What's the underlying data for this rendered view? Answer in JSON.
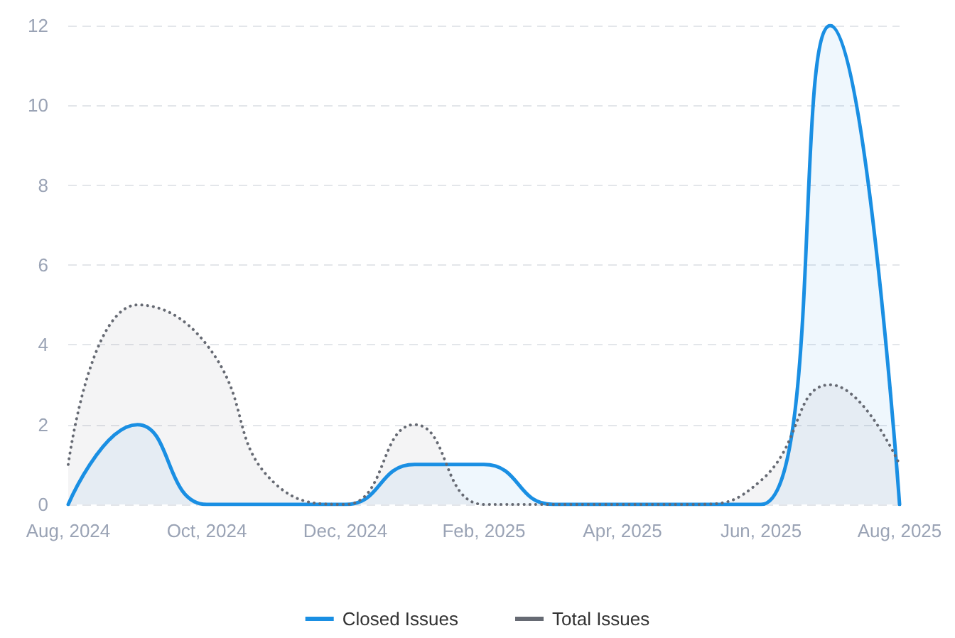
{
  "chart_data": {
    "type": "area",
    "categories": [
      "Aug, 2024",
      null,
      "Oct, 2024",
      null,
      "Dec, 2024",
      null,
      "Feb, 2025",
      null,
      "Apr, 2025",
      null,
      "Jun, 2025",
      null,
      "Aug, 2025"
    ],
    "series": [
      {
        "name": "Closed Issues",
        "color": "#1a8fe3",
        "line_style": "solid",
        "values": [
          0,
          2,
          0,
          0,
          0,
          1,
          1,
          0,
          0,
          0,
          0,
          12,
          0
        ]
      },
      {
        "name": "Total Issues",
        "color": "#666a73",
        "line_style": "dotted",
        "values": [
          1,
          5,
          4,
          0.5,
          0,
          2,
          0,
          0,
          0,
          0,
          0.6,
          3,
          1
        ]
      }
    ],
    "ylim": [
      0,
      12
    ],
    "yticks": [
      0,
      2,
      4,
      6,
      8,
      10,
      12
    ],
    "grid": "y",
    "legend": "bottom",
    "marker": "none"
  }
}
